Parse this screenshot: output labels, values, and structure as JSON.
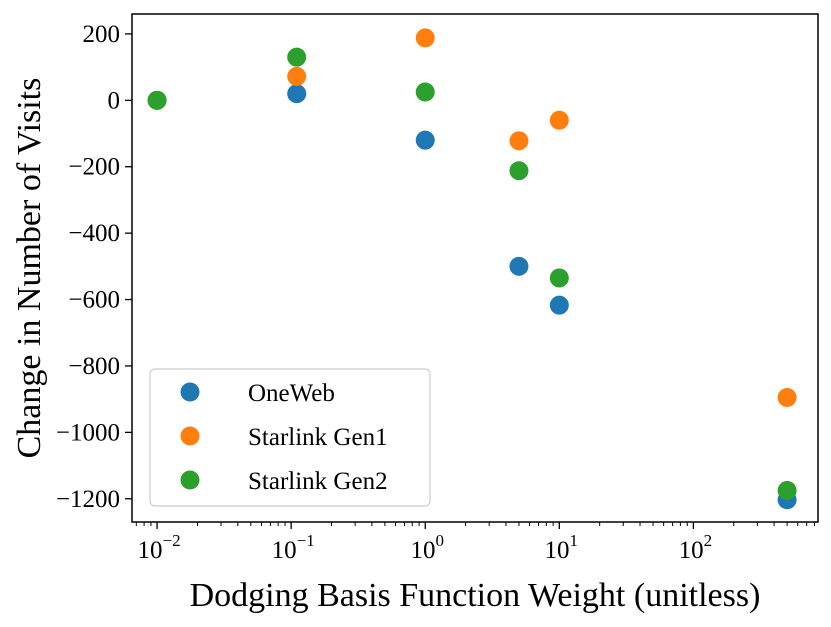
{
  "chart_data": {
    "type": "scatter",
    "title": "",
    "xlabel": "Dodging Basis Function Weight (unitless)",
    "ylabel": "Change in Number of Visits",
    "xscale": "log",
    "xlim": [
      0.0065,
      850
    ],
    "ylim": [
      -1270,
      260
    ],
    "grid": false,
    "legend_position": "lower-left",
    "x_ticks": [
      {
        "value": 0.01,
        "base": "10",
        "exp": "−2"
      },
      {
        "value": 0.1,
        "base": "10",
        "exp": "−1"
      },
      {
        "value": 1,
        "base": "10",
        "exp": "0"
      },
      {
        "value": 10,
        "base": "10",
        "exp": "1"
      },
      {
        "value": 100,
        "base": "10",
        "exp": "2"
      }
    ],
    "y_ticks": [
      {
        "value": 200,
        "label": "200"
      },
      {
        "value": 0,
        "label": "0"
      },
      {
        "value": -200,
        "label": "−200"
      },
      {
        "value": -400,
        "label": "−400"
      },
      {
        "value": -600,
        "label": "−600"
      },
      {
        "value": -800,
        "label": "−800"
      },
      {
        "value": -1000,
        "label": "−1000"
      },
      {
        "value": -1200,
        "label": "−1200"
      }
    ],
    "series": [
      {
        "name": "OneWeb",
        "color": "#1f77b4",
        "points": [
          {
            "x": 0.01,
            "y": 0
          },
          {
            "x": 0.11,
            "y": 20
          },
          {
            "x": 1,
            "y": -120
          },
          {
            "x": 5,
            "y": -500
          },
          {
            "x": 10,
            "y": -617
          },
          {
            "x": 500,
            "y": -1203
          }
        ]
      },
      {
        "name": "Starlink Gen1",
        "color": "#ff7f0e",
        "points": [
          {
            "x": 0.01,
            "y": 0
          },
          {
            "x": 0.11,
            "y": 72
          },
          {
            "x": 1,
            "y": 188
          },
          {
            "x": 5,
            "y": -122
          },
          {
            "x": 10,
            "y": -60
          },
          {
            "x": 500,
            "y": -895
          }
        ]
      },
      {
        "name": "Starlink Gen2",
        "color": "#2ca02c",
        "points": [
          {
            "x": 0.01,
            "y": 0
          },
          {
            "x": 0.11,
            "y": 130
          },
          {
            "x": 1,
            "y": 25
          },
          {
            "x": 5,
            "y": -212
          },
          {
            "x": 10,
            "y": -535
          },
          {
            "x": 500,
            "y": -1175
          }
        ]
      }
    ]
  }
}
